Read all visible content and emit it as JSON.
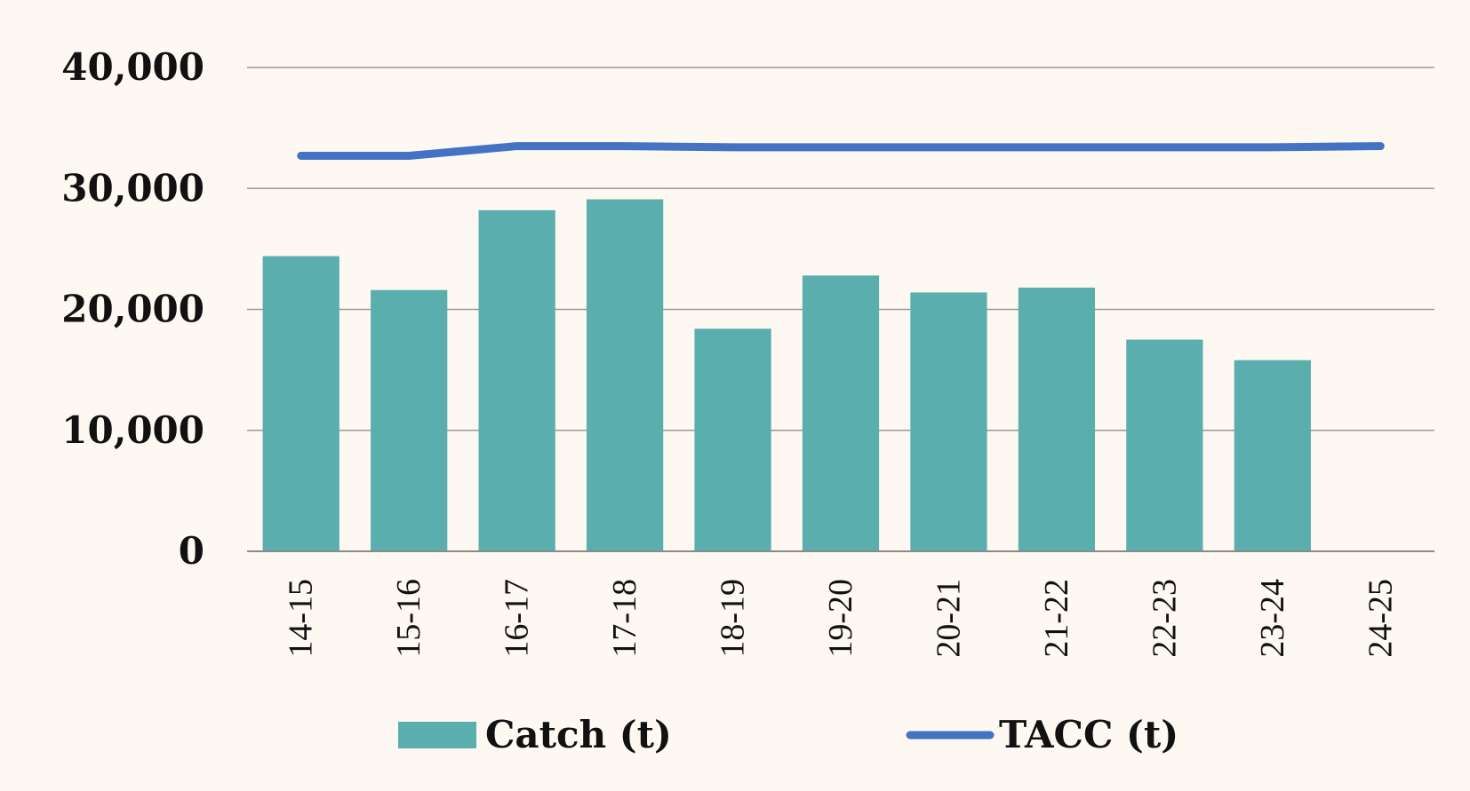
{
  "chart_data": {
    "type": "bar",
    "categories": [
      "14-15",
      "15-16",
      "16-17",
      "17-18",
      "18-19",
      "19-20",
      "20-21",
      "21-22",
      "22-23",
      "23-24",
      "24-25"
    ],
    "series": [
      {
        "name": "Catch (t)",
        "type": "bar",
        "color": "#5aaeae",
        "values": [
          24400,
          21600,
          28200,
          29100,
          18400,
          22800,
          21400,
          21800,
          17500,
          15800,
          null
        ]
      },
      {
        "name": "TACC (t)",
        "type": "line",
        "color": "#4472c4",
        "values": [
          32700,
          32700,
          33500,
          33500,
          33400,
          33400,
          33400,
          33400,
          33400,
          33400,
          33500
        ]
      }
    ],
    "ylim": [
      0,
      40000
    ],
    "yticks": [
      "0",
      "10,000",
      "20,000",
      "30,000",
      "40,000"
    ],
    "grid": true,
    "legend_position": "bottom"
  }
}
